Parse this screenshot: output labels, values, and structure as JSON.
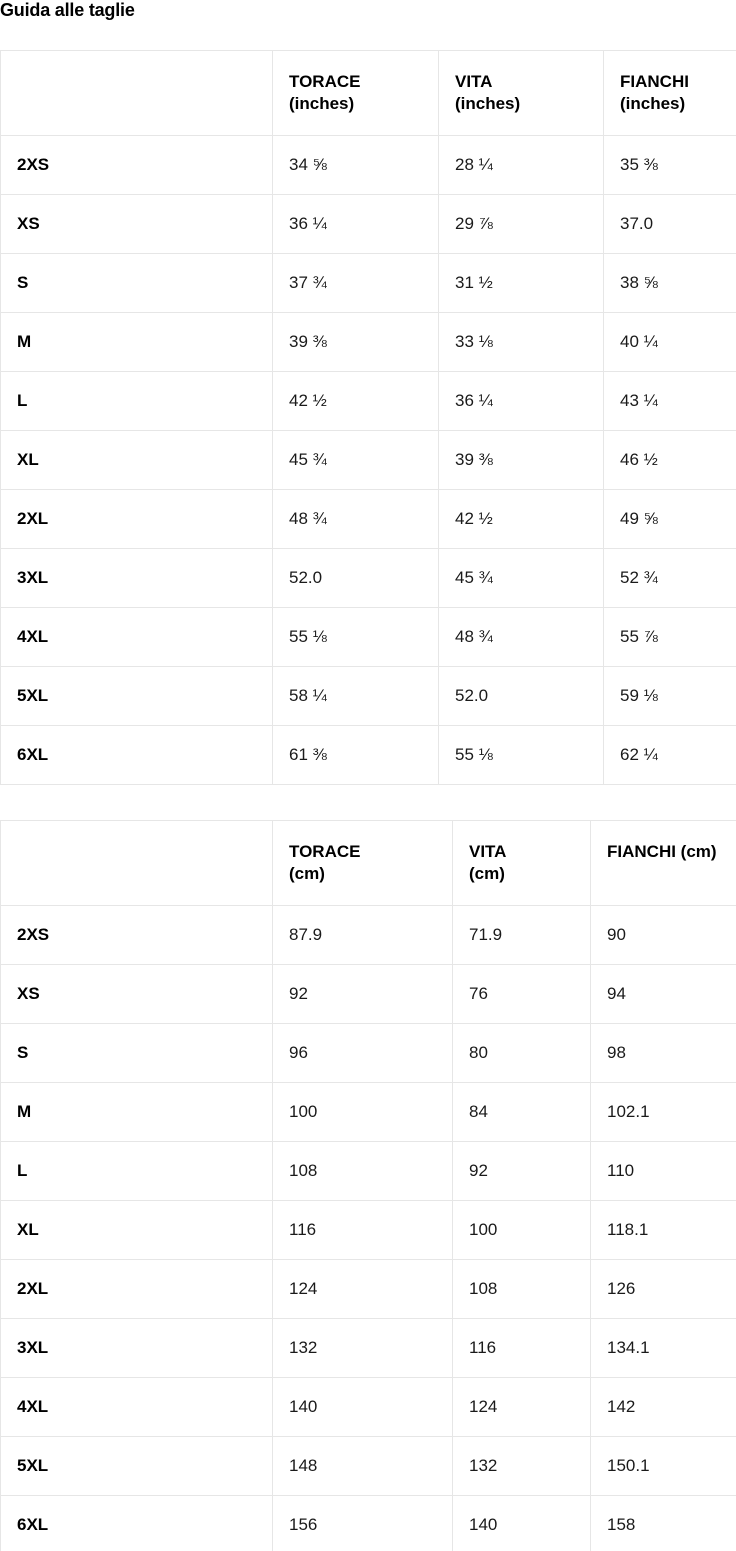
{
  "title": "Guida alle taglie",
  "colors": {
    "background": "#ffffff",
    "text": "#1a1a1a",
    "heading_text": "#000000",
    "table_border": "#e6e6e6"
  },
  "tables": [
    {
      "name": "size-table-inches",
      "header_lines": [
        [],
        [
          "TORACE",
          "(inches)"
        ],
        [
          "VITA",
          "(inches)"
        ],
        [
          "FIANCHI",
          "(inches)"
        ]
      ],
      "rows": [
        {
          "size": "2XS",
          "values": [
            "34 ⅝",
            "28 ¼",
            "35 ⅜"
          ]
        },
        {
          "size": "XS",
          "values": [
            "36 ¼",
            "29 ⅞",
            "37.0"
          ]
        },
        {
          "size": "S",
          "values": [
            "37 ¾",
            "31 ½",
            "38 ⅝"
          ]
        },
        {
          "size": "M",
          "values": [
            "39 ⅜",
            "33 ⅛",
            "40 ¼"
          ]
        },
        {
          "size": "L",
          "values": [
            "42 ½",
            "36 ¼",
            "43 ¼"
          ]
        },
        {
          "size": "XL",
          "values": [
            "45 ¾",
            "39 ⅜",
            "46 ½"
          ]
        },
        {
          "size": "2XL",
          "values": [
            "48 ¾",
            "42 ½",
            "49 ⅝"
          ]
        },
        {
          "size": "3XL",
          "values": [
            "52.0",
            "45 ¾",
            "52 ¾"
          ]
        },
        {
          "size": "4XL",
          "values": [
            "55 ⅛",
            "48 ¾",
            "55 ⅞"
          ]
        },
        {
          "size": "5XL",
          "values": [
            "58 ¼",
            "52.0",
            "59 ⅛"
          ]
        },
        {
          "size": "6XL",
          "values": [
            "61 ⅜",
            "55 ⅛",
            "62 ¼"
          ]
        }
      ]
    },
    {
      "name": "size-table-cm",
      "header_lines": [
        [],
        [
          "TORACE",
          "(cm)"
        ],
        [
          "VITA",
          "(cm)"
        ],
        [
          "FIANCHI (cm)"
        ]
      ],
      "rows": [
        {
          "size": "2XS",
          "values": [
            "87.9",
            "71.9",
            "90"
          ]
        },
        {
          "size": "XS",
          "values": [
            "92",
            "76",
            "94"
          ]
        },
        {
          "size": "S",
          "values": [
            "96",
            "80",
            "98"
          ]
        },
        {
          "size": "M",
          "values": [
            "100",
            "84",
            "102.1"
          ]
        },
        {
          "size": "L",
          "values": [
            "108",
            "92",
            "110"
          ]
        },
        {
          "size": "XL",
          "values": [
            "116",
            "100",
            "118.1"
          ]
        },
        {
          "size": "2XL",
          "values": [
            "124",
            "108",
            "126"
          ]
        },
        {
          "size": "3XL",
          "values": [
            "132",
            "116",
            "134.1"
          ]
        },
        {
          "size": "4XL",
          "values": [
            "140",
            "124",
            "142"
          ]
        },
        {
          "size": "5XL",
          "values": [
            "148",
            "132",
            "150.1"
          ]
        },
        {
          "size": "6XL",
          "values": [
            "156",
            "140",
            "158"
          ]
        }
      ]
    }
  ]
}
